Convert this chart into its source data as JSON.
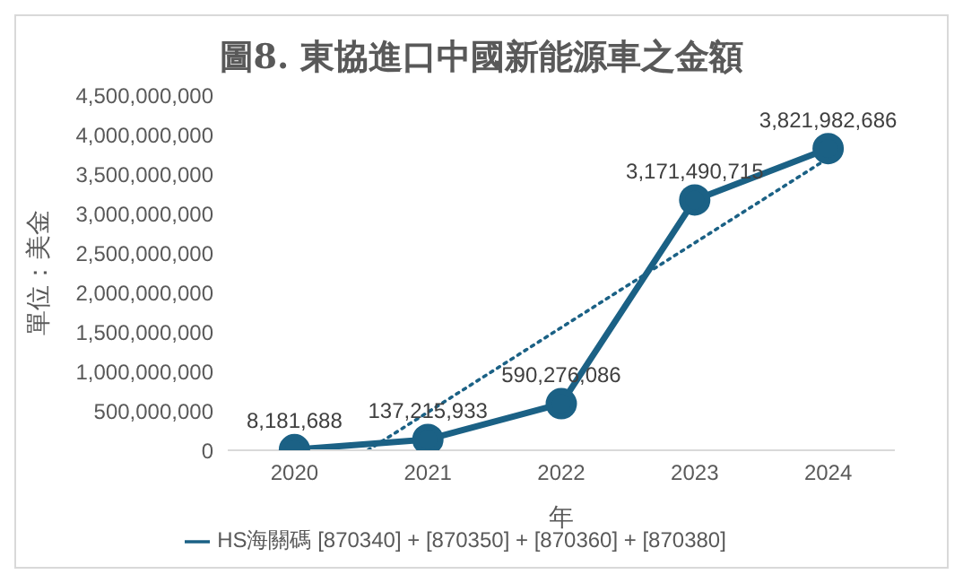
{
  "chart_data": {
    "type": "line",
    "title": "圖8. 東協進口中國新能源車之金額",
    "xlabel": "年",
    "ylabel": "單位：美金",
    "x": [
      2020,
      2021,
      2022,
      2023,
      2024
    ],
    "xlim": [
      2019.5,
      2024.5
    ],
    "xticks": [
      2020,
      2021,
      2022,
      2023,
      2024
    ],
    "ylim": [
      0,
      4500000000
    ],
    "yticks": [
      0,
      {
        "value": 500000000,
        "label": "500,000,000"
      },
      {
        "value": 1000000000,
        "label": "1,000,000,000"
      },
      {
        "value": 1500000000,
        "label": "1,500,000,000"
      },
      {
        "value": 2000000000,
        "label": "2,000,000,000"
      },
      {
        "value": 2500000000,
        "label": "2,500,000,000"
      },
      {
        "value": 3000000000,
        "label": "3,000,000,000"
      },
      {
        "value": 3500000000,
        "label": "3,500,000,000"
      },
      {
        "value": 4000000000,
        "label": "4,000,000,000"
      },
      {
        "value": 4500000000,
        "label": "4,500,000,000"
      }
    ],
    "series": [
      {
        "name": "HS海關碼 [870340] + [870350] + [870360] + [870380]",
        "color": "#1b6185",
        "values": [
          8181688,
          137215933,
          590276086,
          3171490715,
          3821982686
        ],
        "value_labels": [
          "8,181,688",
          "137,215,933",
          "590,276,086",
          "3,171,490,715",
          "3,821,982,686"
        ],
        "marker": "circle",
        "line_style": "solid"
      },
      {
        "type": "line",
        "x": [
          2020.55,
          2024
        ],
        "color": "#1b6185",
        "values": [
          0,
          3700000000
        ],
        "marker": "none",
        "line_style": "dotted"
      }
    ],
    "legend": "bottom"
  }
}
